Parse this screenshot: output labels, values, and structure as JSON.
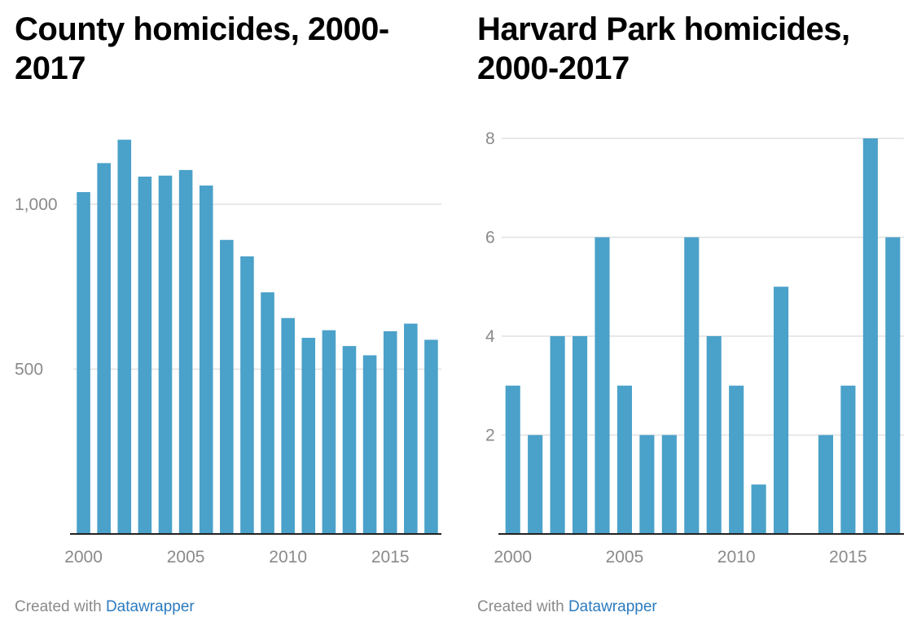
{
  "charts": [
    {
      "title": "County homicides, 2000-2017",
      "footer_prefix": "Created with",
      "footer_brand": "Datawrapper"
    },
    {
      "title": "Harvard Park homicides, 2000-2017",
      "footer_prefix": "Created with",
      "footer_brand": "Datawrapper"
    }
  ],
  "colors": {
    "bar": "#4aa1c9",
    "grid": "#e0e0e0",
    "axis": "#222222",
    "tick_text": "#8a8a8a",
    "brand": "#2c7bbf"
  },
  "chart_data": [
    {
      "type": "bar",
      "title": "County homicides, 2000-2017",
      "x": [
        2000,
        2001,
        2002,
        2003,
        2004,
        2005,
        2006,
        2007,
        2008,
        2009,
        2010,
        2011,
        2012,
        2013,
        2014,
        2015,
        2016,
        2017
      ],
      "values": [
        1037,
        1125,
        1196,
        1084,
        1087,
        1104,
        1057,
        892,
        842,
        733,
        655,
        595,
        618,
        570,
        542,
        615,
        638,
        589
      ],
      "ylim": [
        0,
        1200
      ],
      "yticks": [
        500,
        1000
      ],
      "ytick_labels": [
        "500",
        "1,000"
      ],
      "xticks": [
        2000,
        2005,
        2010,
        2015
      ],
      "xtick_labels": [
        "2000",
        "2005",
        "2010",
        "2015"
      ],
      "grid": true
    },
    {
      "type": "bar",
      "title": "Harvard Park homicides, 2000-2017",
      "x": [
        2000,
        2001,
        2002,
        2003,
        2004,
        2005,
        2006,
        2007,
        2008,
        2009,
        2010,
        2011,
        2012,
        2013,
        2014,
        2015,
        2016,
        2017
      ],
      "values": [
        3,
        2,
        4,
        4,
        6,
        3,
        2,
        2,
        6,
        4,
        3,
        1,
        5,
        0,
        2,
        3,
        8,
        6
      ],
      "ylim": [
        0,
        8
      ],
      "yticks": [
        2,
        4,
        6,
        8
      ],
      "ytick_labels": [
        "2",
        "4",
        "6",
        "8"
      ],
      "xticks": [
        2000,
        2005,
        2010,
        2015
      ],
      "xtick_labels": [
        "2000",
        "2005",
        "2010",
        "2015"
      ],
      "grid": true
    }
  ]
}
